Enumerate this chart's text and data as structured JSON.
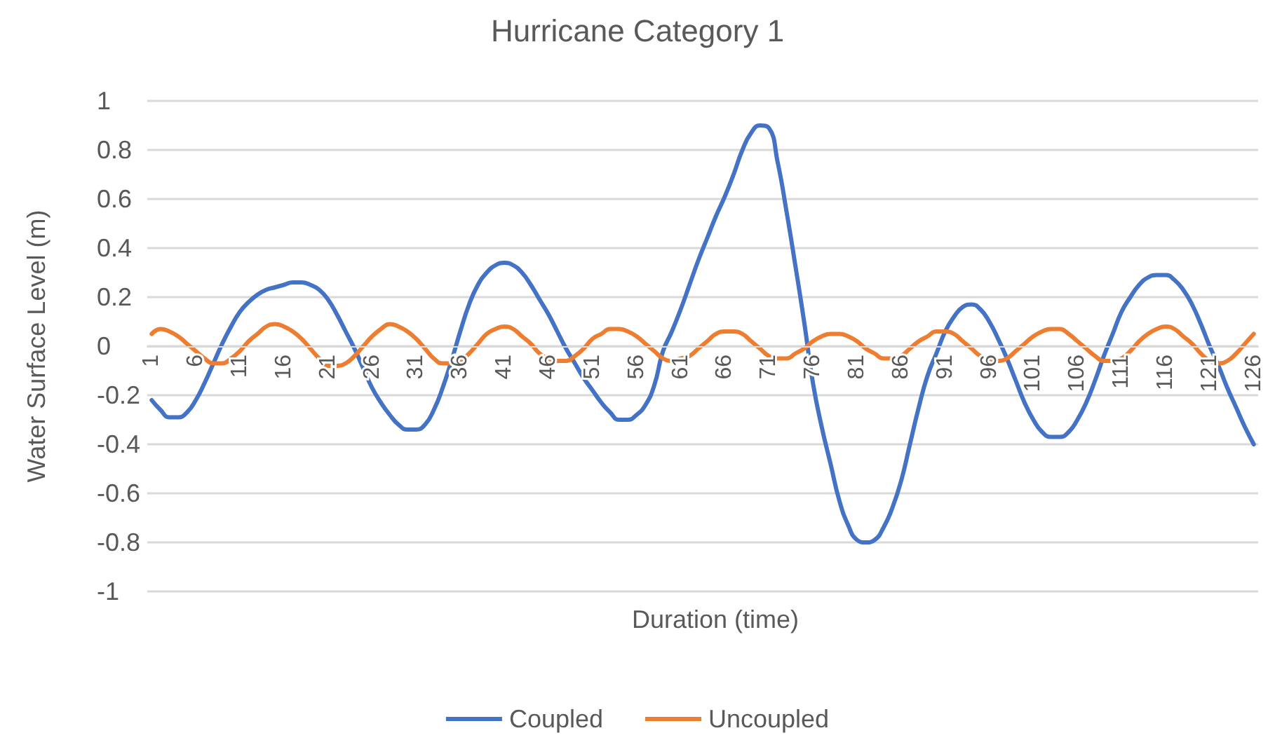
{
  "chart_data": {
    "type": "line",
    "title": "Hurricane Category 1",
    "xlabel": "Duration (time)",
    "ylabel": "Water Surface Level (m)",
    "categories": [
      "1",
      null,
      null,
      null,
      null,
      "6",
      null,
      null,
      null,
      null,
      "11",
      null,
      null,
      null,
      null,
      "16",
      null,
      null,
      null,
      null,
      "21",
      null,
      null,
      null,
      null,
      "26",
      null,
      null,
      null,
      null,
      "31",
      null,
      null,
      null,
      null,
      "36",
      null,
      null,
      null,
      null,
      "41",
      null,
      null,
      null,
      null,
      "46",
      null,
      null,
      null,
      null,
      "51",
      null,
      null,
      null,
      null,
      "56",
      null,
      null,
      null,
      null,
      "61",
      null,
      null,
      null,
      null,
      "66",
      null,
      null,
      null,
      null,
      "71",
      null,
      null,
      null,
      null,
      "76",
      null,
      null,
      null,
      null,
      "81",
      null,
      null,
      null,
      null,
      "86",
      null,
      null,
      null,
      null,
      "91",
      null,
      null,
      null,
      null,
      "96",
      null,
      null,
      null,
      null,
      "101",
      null,
      null,
      null,
      null,
      "106",
      null,
      null,
      null,
      null,
      "111",
      null,
      null,
      null,
      null,
      "116",
      null,
      null,
      null,
      null,
      "121",
      null,
      null,
      null,
      null,
      "126"
    ],
    "series": [
      {
        "name": "Coupled",
        "color": "#4472c4",
        "values": [
          -0.22,
          -0.26,
          -0.29,
          -0.29,
          -0.27,
          -0.22,
          -0.15,
          -0.07,
          0.01,
          0.08,
          0.14,
          0.18,
          0.21,
          0.23,
          0.24,
          0.25,
          0.26,
          0.26,
          0.25,
          0.23,
          0.19,
          0.13,
          0.06,
          -0.01,
          -0.09,
          -0.17,
          -0.23,
          -0.28,
          -0.32,
          -0.34,
          -0.34,
          -0.32,
          -0.26,
          -0.17,
          -0.06,
          0.06,
          0.17,
          0.25,
          0.3,
          0.33,
          0.34,
          0.33,
          0.3,
          0.25,
          0.19,
          0.13,
          0.06,
          -0.01,
          -0.07,
          -0.13,
          -0.18,
          -0.23,
          -0.27,
          -0.3,
          -0.3,
          -0.28,
          -0.24,
          -0.16,
          -0.02,
          0.06,
          0.15,
          0.25,
          0.35,
          0.44,
          0.53,
          0.61,
          0.7,
          0.8,
          0.87,
          0.9,
          0.89,
          0.75,
          0.55,
          0.33,
          0.1,
          -0.15,
          -0.33,
          -0.48,
          -0.63,
          -0.73,
          -0.79,
          -0.8,
          -0.79,
          -0.74,
          -0.66,
          -0.55,
          -0.4,
          -0.25,
          -0.12,
          -0.03,
          0.06,
          0.12,
          0.16,
          0.17,
          0.15,
          0.1,
          0.03,
          -0.05,
          -0.14,
          -0.23,
          -0.3,
          -0.35,
          -0.37,
          -0.37,
          -0.35,
          -0.3,
          -0.23,
          -0.14,
          -0.04,
          0.05,
          0.14,
          0.2,
          0.25,
          0.28,
          0.29,
          0.29,
          0.27,
          0.23,
          0.17,
          0.09,
          0.0,
          -0.08,
          -0.17,
          -0.25,
          -0.33,
          -0.4
        ]
      },
      {
        "name": "Uncoupled",
        "color": "#ed7d31",
        "values": [
          0.05,
          0.07,
          0.06,
          0.04,
          0.01,
          -0.02,
          -0.05,
          -0.07,
          -0.07,
          -0.05,
          -0.02,
          0.02,
          0.05,
          0.08,
          0.09,
          0.08,
          0.06,
          0.03,
          -0.01,
          -0.05,
          -0.08,
          -0.08,
          -0.07,
          -0.04,
          0.0,
          0.04,
          0.07,
          0.09,
          0.08,
          0.06,
          0.03,
          -0.01,
          -0.05,
          -0.07,
          -0.07,
          -0.06,
          -0.03,
          0.01,
          0.05,
          0.07,
          0.08,
          0.07,
          0.04,
          0.01,
          -0.03,
          -0.05,
          -0.06,
          -0.06,
          -0.04,
          -0.01,
          0.03,
          0.05,
          0.07,
          0.07,
          0.06,
          0.04,
          0.01,
          -0.02,
          -0.05,
          -0.06,
          -0.05,
          -0.04,
          -0.01,
          0.02,
          0.05,
          0.06,
          0.06,
          0.05,
          0.02,
          -0.01,
          -0.04,
          -0.05,
          -0.05,
          -0.03,
          -0.01,
          0.02,
          0.04,
          0.05,
          0.05,
          0.04,
          0.02,
          -0.01,
          -0.03,
          -0.05,
          -0.05,
          -0.04,
          -0.01,
          0.02,
          0.04,
          0.06,
          0.06,
          0.05,
          0.02,
          -0.01,
          -0.04,
          -0.05,
          -0.06,
          -0.05,
          -0.02,
          0.01,
          0.04,
          0.06,
          0.07,
          0.07,
          0.05,
          0.02,
          -0.01,
          -0.04,
          -0.06,
          -0.06,
          -0.05,
          -0.02,
          0.02,
          0.05,
          0.07,
          0.08,
          0.07,
          0.04,
          0.01,
          -0.03,
          -0.06,
          -0.07,
          -0.06,
          -0.03,
          0.01,
          0.05
        ]
      }
    ],
    "ylim": [
      -1,
      1
    ],
    "yticks": [
      -1,
      -0.8,
      -0.6,
      -0.4,
      -0.2,
      0,
      0.2,
      0.4,
      0.6,
      0.8,
      1
    ],
    "grid": "y",
    "legend": "bottom",
    "marker": "none",
    "line_style": "solid"
  }
}
